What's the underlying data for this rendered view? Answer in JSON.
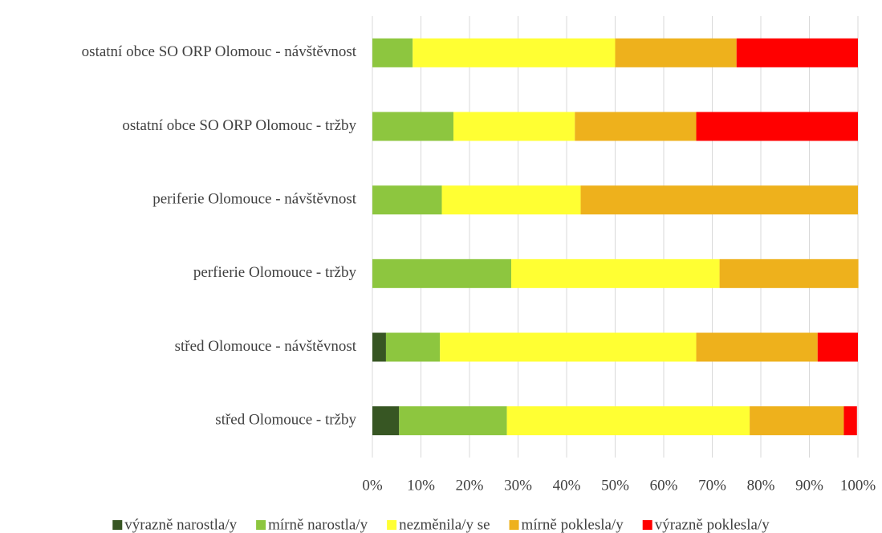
{
  "chart_data": {
    "type": "stacked_barh",
    "categories": [
      "ostatní obce SO ORP Olomouc - návštěvnost",
      "ostatní obce SO ORP Olomouc - tržby",
      "periferie Olomouce - návštěvnost",
      "perfierie Olomouce - tržby",
      "střed Olomouce - návštěvnost",
      "střed Olomouce - tržby"
    ],
    "series": [
      {
        "name": "výrazně narostla/y",
        "color": "#375623",
        "values": [
          0,
          0,
          0,
          0,
          2.8,
          5.5
        ]
      },
      {
        "name": "mírně narostla/y",
        "color": "#8dc63f",
        "values": [
          8.3,
          16.7,
          14.3,
          28.6,
          11.1,
          22.2
        ]
      },
      {
        "name": "nezměnila/y se",
        "color": "#ffff33",
        "values": [
          41.7,
          25,
          28.6,
          42.9,
          52.8,
          50
        ]
      },
      {
        "name": "mírně poklesla/y",
        "color": "#eeb11c",
        "values": [
          25,
          25,
          57.1,
          28.6,
          25,
          19.4
        ]
      },
      {
        "name": "výrazně poklesla/y",
        "color": "#ff0000",
        "values": [
          25,
          33.3,
          0,
          0,
          8.3,
          2.7
        ]
      }
    ],
    "xlim": [
      0,
      100
    ],
    "xticks": [
      {
        "value": 0,
        "label": "0%"
      },
      {
        "value": 10,
        "label": "10%"
      },
      {
        "value": 20,
        "label": "20%"
      },
      {
        "value": 30,
        "label": "30%"
      },
      {
        "value": 40,
        "label": "40%"
      },
      {
        "value": 50,
        "label": "50%"
      },
      {
        "value": 60,
        "label": "60%"
      },
      {
        "value": 70,
        "label": "70%"
      },
      {
        "value": 80,
        "label": "80%"
      },
      {
        "value": 90,
        "label": "90%"
      },
      {
        "value": 100,
        "label": "100%"
      }
    ],
    "grid": true,
    "legend": "bottom"
  }
}
